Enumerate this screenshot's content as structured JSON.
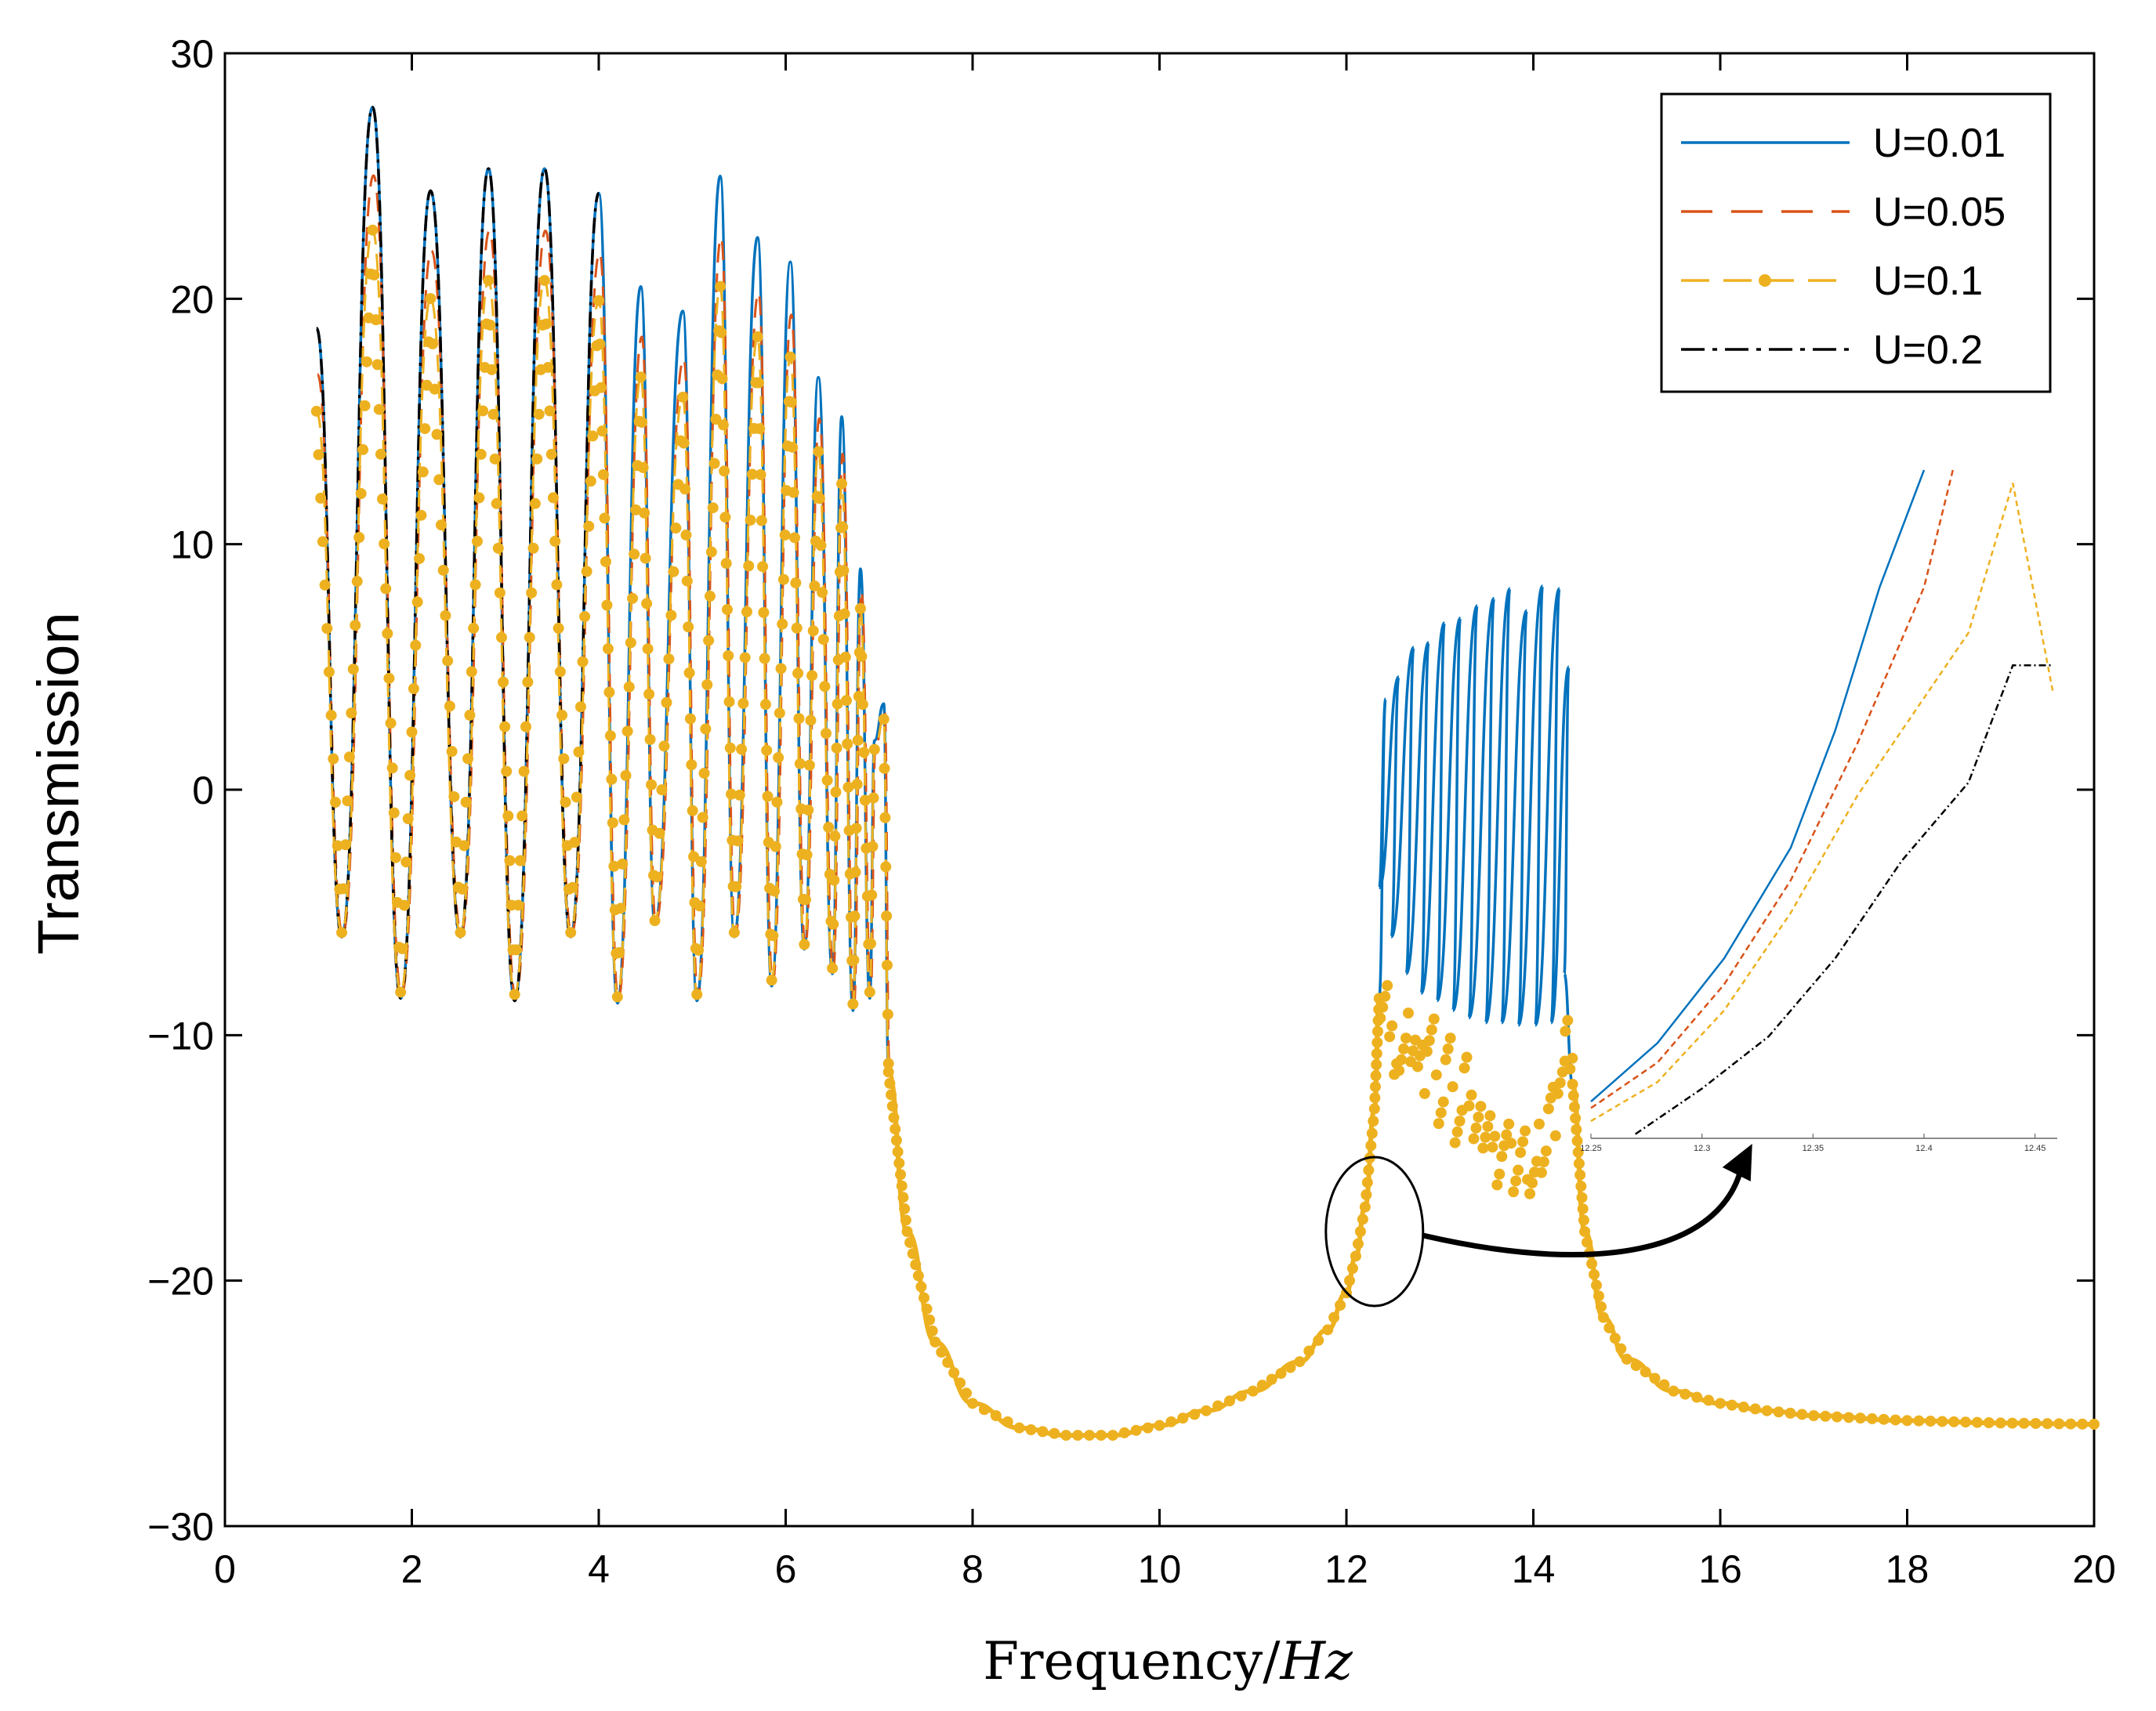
{
  "chart_data": {
    "type": "line",
    "title": "",
    "xlabel": "Frequency/",
    "xlabel_unit": "Hz",
    "ylabel": "Transmission",
    "xlim": [
      0,
      20
    ],
    "ylim": [
      -30,
      30
    ],
    "xticks": [
      0,
      2,
      4,
      6,
      8,
      10,
      12,
      14,
      16,
      18,
      20
    ],
    "xtick_labels": [
      "0",
      "2",
      "4",
      "6",
      "8",
      "10",
      "12",
      "14",
      "16",
      "18",
      "20"
    ],
    "yticks": [
      30,
      20,
      10,
      0,
      -10,
      -20,
      -30
    ],
    "ytick_labels": [
      "30",
      "20",
      "10",
      "0",
      "−10",
      "−20",
      "−30"
    ],
    "legend_position": "top-right",
    "series": [
      {
        "name": "U=0.01",
        "color": "#0072BD",
        "style": "solid",
        "peaks_low_band": [
          [
            0.98,
            18.8
          ],
          [
            1.58,
            27.8
          ],
          [
            2.2,
            24.4
          ],
          [
            2.82,
            25.3
          ],
          [
            3.42,
            25.3
          ],
          [
            4.0,
            24.3
          ],
          [
            4.45,
            20.5
          ],
          [
            4.9,
            19.5
          ],
          [
            5.3,
            25.0
          ],
          [
            5.7,
            22.5
          ],
          [
            6.05,
            21.5
          ],
          [
            6.35,
            16.8
          ],
          [
            6.6,
            15.2
          ],
          [
            6.8,
            9.0
          ],
          [
            6.95,
            2.0
          ],
          [
            7.05,
            3.5
          ]
        ],
        "valleys_low_band": [
          [
            1.25,
            -6.0
          ],
          [
            1.88,
            -8.5
          ],
          [
            2.52,
            -6.0
          ],
          [
            3.1,
            -8.6
          ],
          [
            3.7,
            -6.0
          ],
          [
            4.2,
            -8.7
          ],
          [
            4.6,
            -5.5
          ],
          [
            5.05,
            -8.6
          ],
          [
            5.45,
            -6.0
          ],
          [
            5.85,
            -8.0
          ],
          [
            6.2,
            -6.5
          ],
          [
            6.5,
            -7.5
          ],
          [
            6.72,
            -9.0
          ],
          [
            6.9,
            -8.5
          ]
        ],
        "peaks_high_band": [
          [
            12.42,
            3.7
          ],
          [
            12.56,
            4.6
          ],
          [
            12.72,
            5.8
          ],
          [
            12.88,
            6.0
          ],
          [
            13.05,
            6.8
          ],
          [
            13.22,
            7.0
          ],
          [
            13.4,
            7.5
          ],
          [
            13.58,
            7.8
          ],
          [
            13.75,
            8.2
          ],
          [
            13.93,
            7.3
          ],
          [
            14.1,
            8.3
          ],
          [
            14.28,
            8.2
          ],
          [
            14.38,
            5.0
          ]
        ],
        "valleys_high_band": [
          [
            12.35,
            -4.0
          ],
          [
            12.48,
            -6.0
          ],
          [
            12.64,
            -7.5
          ],
          [
            12.8,
            -8.3
          ],
          [
            12.97,
            -8.6
          ],
          [
            13.14,
            -9.0
          ],
          [
            13.31,
            -9.3
          ],
          [
            13.49,
            -9.5
          ],
          [
            13.66,
            -9.5
          ],
          [
            13.84,
            -9.6
          ],
          [
            14.02,
            -9.6
          ],
          [
            14.19,
            -9.5
          ],
          [
            14.33,
            -7.5
          ]
        ]
      },
      {
        "name": "U=0.05",
        "color": "#D95319",
        "style": "dashed"
      },
      {
        "name": "U=0.1",
        "color": "#EDB120",
        "style": "dashed-dots"
      },
      {
        "name": "U=0.2",
        "color": "#000000",
        "style": "dash-dot"
      }
    ],
    "stopband": [
      [
        7.1,
        -11.5
      ],
      [
        7.3,
        -18.0
      ],
      [
        7.6,
        -22.5
      ],
      [
        8.0,
        -25.0
      ],
      [
        8.5,
        -26.0
      ],
      [
        9.0,
        -26.3
      ],
      [
        9.5,
        -26.3
      ],
      [
        10.0,
        -25.9
      ],
      [
        10.5,
        -25.3
      ],
      [
        11.0,
        -24.5
      ],
      [
        11.5,
        -23.3
      ],
      [
        11.8,
        -22.0
      ],
      [
        12.0,
        -20.5
      ],
      [
        12.1,
        -19.0
      ],
      [
        12.2,
        -17.0
      ],
      [
        12.3,
        -13.0
      ],
      [
        12.35,
        -8.5
      ]
    ],
    "stopband_upper": [
      [
        14.42,
        -12.0
      ],
      [
        14.55,
        -18.0
      ],
      [
        14.75,
        -21.5
      ],
      [
        15.0,
        -23.2
      ],
      [
        15.5,
        -24.5
      ],
      [
        16.0,
        -25.0
      ],
      [
        16.5,
        -25.3
      ],
      [
        17.0,
        -25.5
      ],
      [
        18.0,
        -25.7
      ],
      [
        19.0,
        -25.8
      ],
      [
        20.0,
        -25.85
      ]
    ],
    "u01_scatter_band": [
      [
        12.4,
        -8.2
      ],
      [
        12.5,
        -10.5
      ],
      [
        12.6,
        -11.0
      ],
      [
        12.7,
        -10.2
      ],
      [
        12.8,
        -11.5
      ],
      [
        12.9,
        -10.0
      ],
      [
        13.0,
        -12.5
      ],
      [
        13.1,
        -11.0
      ],
      [
        13.2,
        -13.5
      ],
      [
        13.3,
        -12.0
      ],
      [
        13.4,
        -14.0
      ],
      [
        13.5,
        -13.5
      ],
      [
        13.6,
        -15.0
      ],
      [
        13.7,
        -14.5
      ],
      [
        13.8,
        -15.5
      ],
      [
        13.9,
        -15.0
      ],
      [
        14.0,
        -15.8
      ],
      [
        14.1,
        -14.5
      ],
      [
        14.2,
        -13.0
      ],
      [
        14.3,
        -11.5
      ],
      [
        14.38,
        -10.5
      ]
    ],
    "annotation": {
      "circle_center": [
        12.3,
        -18.0
      ],
      "arrow_to": "inset"
    },
    "inset": {
      "xlim": [
        12.25,
        12.46
      ],
      "xticks": [
        12.25,
        12.3,
        12.35,
        12.4,
        12.45
      ],
      "xtick_labels": [
        "12.25",
        "12.3",
        "12.35",
        "12.4",
        "12.45"
      ],
      "ylim": [
        0,
        1
      ],
      "series": [
        {
          "name": "U=0.01",
          "color": "#0072BD",
          "points": [
            [
              12.25,
              0.03
            ],
            [
              12.28,
              0.12
            ],
            [
              12.31,
              0.25
            ],
            [
              12.34,
              0.42
            ],
            [
              12.36,
              0.6
            ],
            [
              12.38,
              0.82
            ],
            [
              12.4,
              1.0
            ]
          ]
        },
        {
          "name": "U=0.05",
          "color": "#D95319",
          "points": [
            [
              12.25,
              0.02
            ],
            [
              12.28,
              0.09
            ],
            [
              12.31,
              0.21
            ],
            [
              12.34,
              0.37
            ],
            [
              12.37,
              0.58
            ],
            [
              12.4,
              0.82
            ],
            [
              12.413,
              1.0
            ]
          ]
        },
        {
          "name": "U=0.1",
          "color": "#EDB120",
          "points": [
            [
              12.25,
              0.0
            ],
            [
              12.28,
              0.06
            ],
            [
              12.31,
              0.17
            ],
            [
              12.34,
              0.32
            ],
            [
              12.37,
              0.5
            ],
            [
              12.4,
              0.65
            ],
            [
              12.42,
              0.75
            ],
            [
              12.44,
              0.98
            ],
            [
              12.458,
              0.66
            ]
          ]
        },
        {
          "name": "U=0.2",
          "color": "#000000",
          "points": [
            [
              12.27,
              -0.02
            ],
            [
              12.3,
              0.05
            ],
            [
              12.33,
              0.13
            ],
            [
              12.36,
              0.25
            ],
            [
              12.39,
              0.4
            ],
            [
              12.42,
              0.52
            ],
            [
              12.44,
              0.7
            ],
            [
              12.458,
              0.7
            ]
          ]
        }
      ]
    }
  }
}
